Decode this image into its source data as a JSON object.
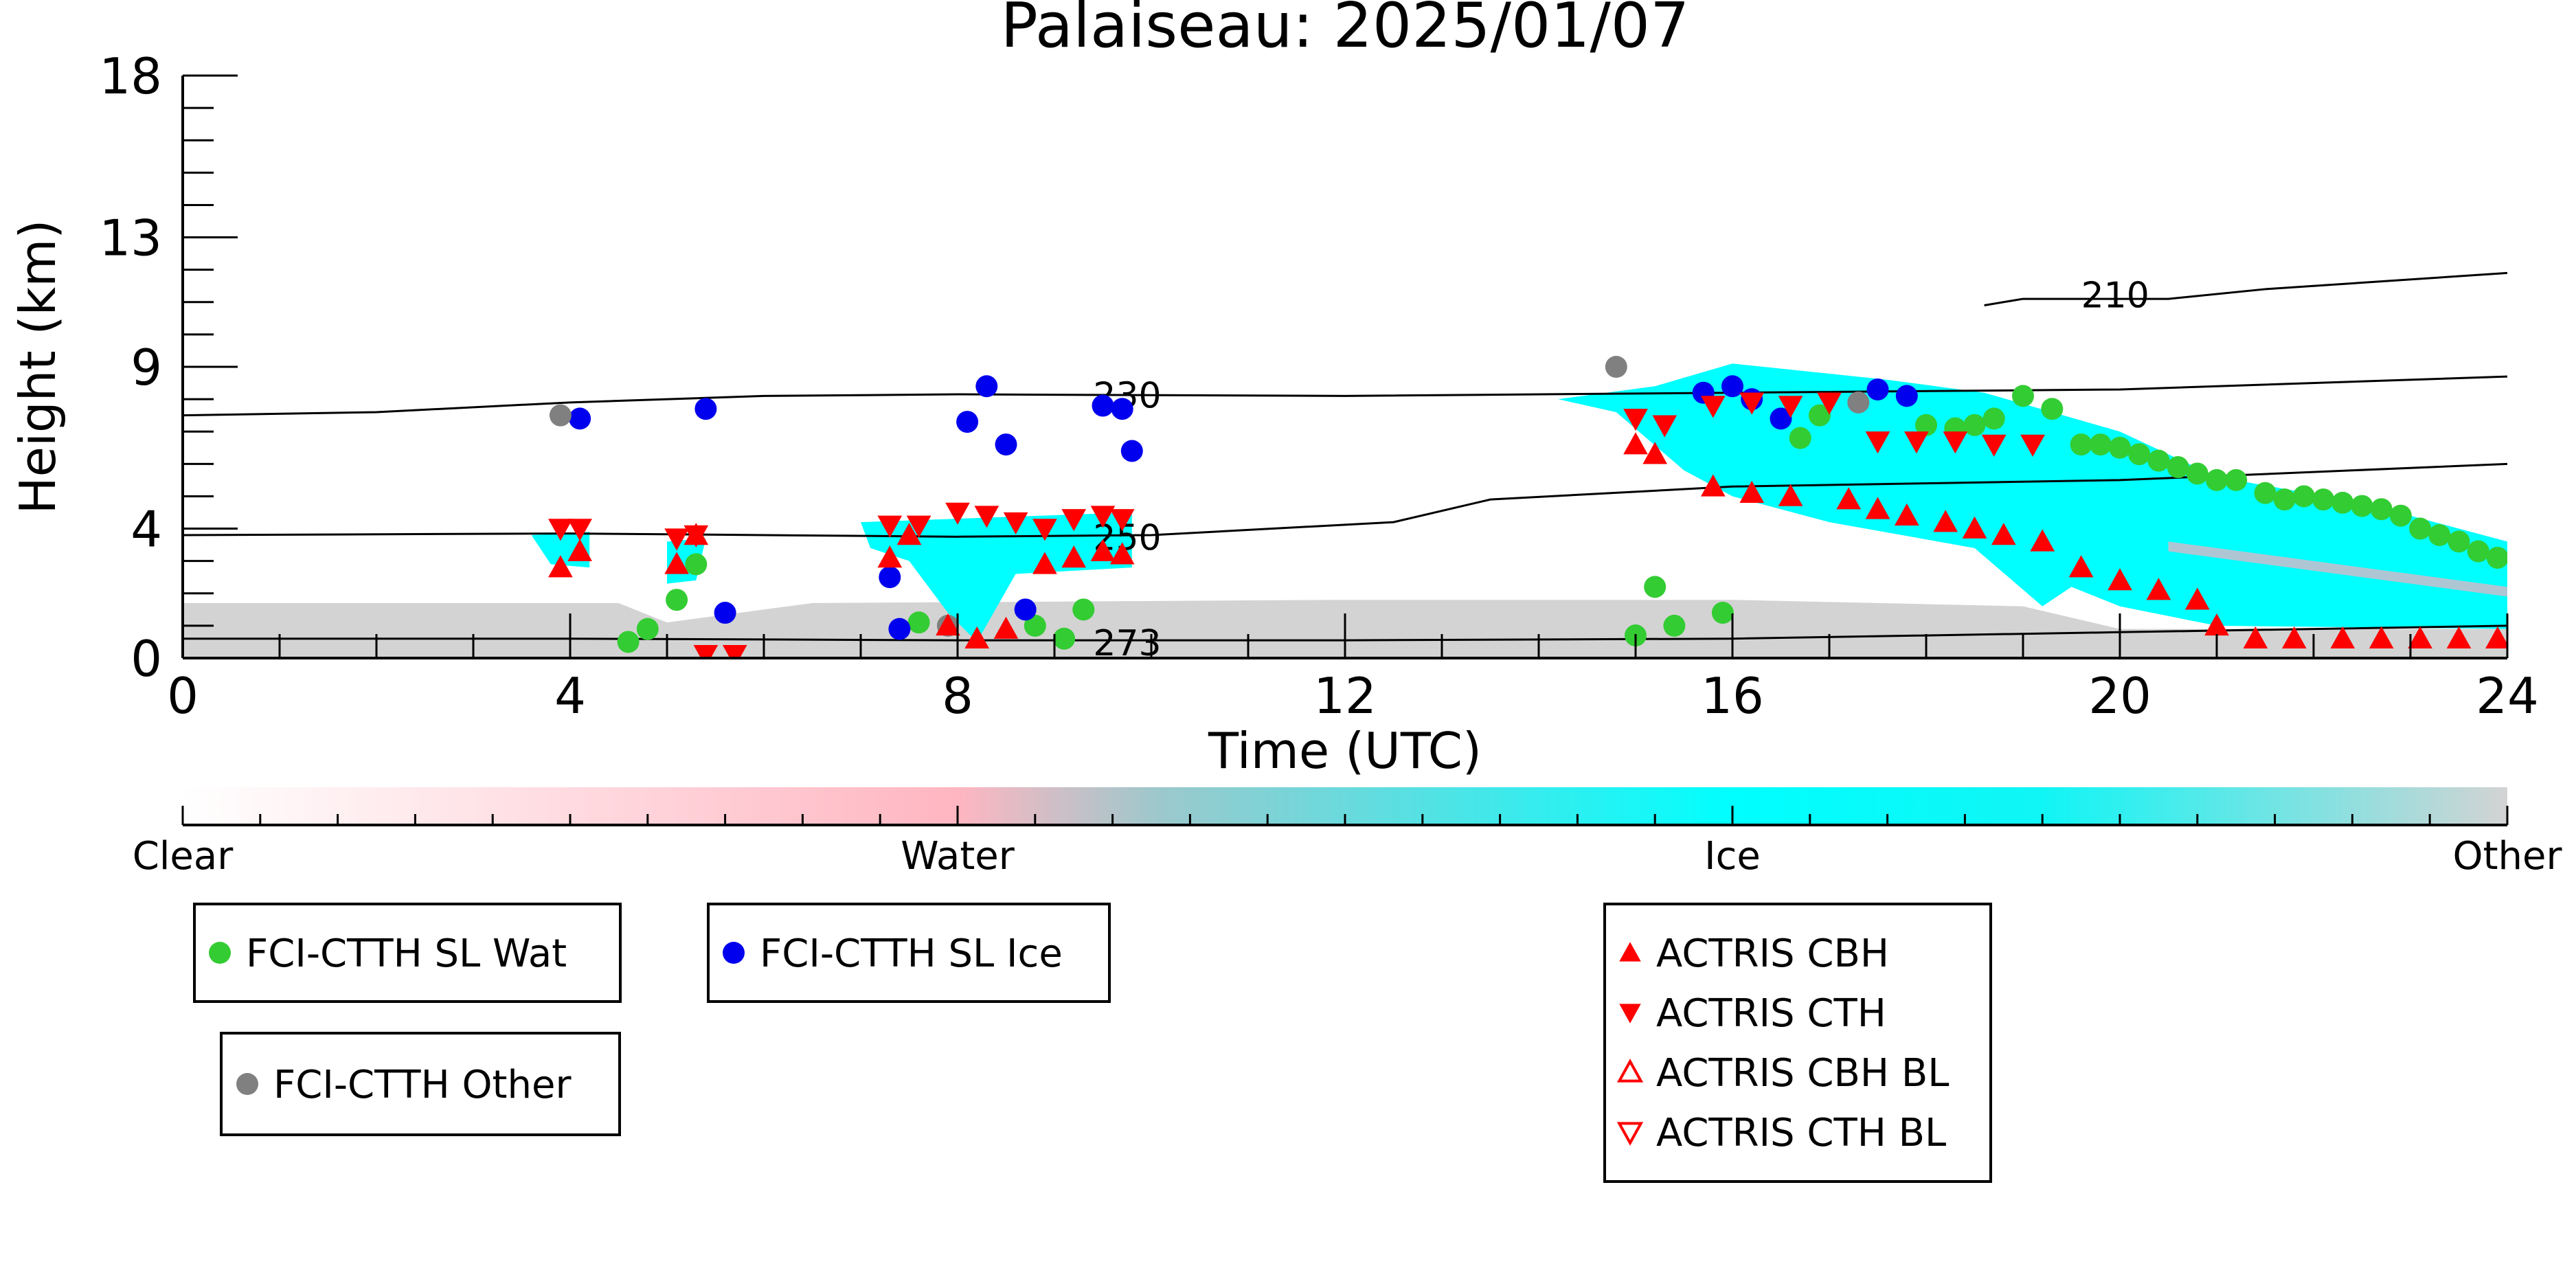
{
  "chart_data": {
    "type": "scatter",
    "title": "Palaiseau: 2025/01/07",
    "xlabel": "Time (UTC)",
    "ylabel": "Height (km)",
    "xlim": [
      0,
      24
    ],
    "ylim": [
      0,
      18
    ],
    "x_ticks": [
      0,
      4,
      8,
      12,
      16,
      20,
      24
    ],
    "y_ticks": [
      0,
      4,
      9,
      13,
      18
    ],
    "y_tick_labels": [
      "0",
      "4",
      "9",
      "13",
      "18"
    ],
    "colorbar": {
      "labels": [
        "Clear",
        "Water",
        "Ice",
        "Other"
      ],
      "colors": [
        "#ffffff",
        "#ffb6c1",
        "#00ffff",
        "#d3d3d3"
      ]
    },
    "contours": [
      {
        "label": "210",
        "label_at": [
          19.6,
          11.2
        ],
        "points": [
          [
            18.6,
            10.9
          ],
          [
            19.0,
            11.1
          ],
          [
            20.5,
            11.1
          ],
          [
            21.5,
            11.4
          ],
          [
            24,
            11.9
          ]
        ]
      },
      {
        "label": "230",
        "label_at": [
          9.4,
          8.1
        ],
        "points": [
          [
            0,
            7.5
          ],
          [
            2,
            7.6
          ],
          [
            4,
            7.9
          ],
          [
            6,
            8.1
          ],
          [
            8,
            8.15
          ],
          [
            12,
            8.1
          ],
          [
            16,
            8.2
          ],
          [
            20,
            8.3
          ],
          [
            24,
            8.7
          ]
        ]
      },
      {
        "label": "250",
        "label_at": [
          9.4,
          3.7
        ],
        "points": [
          [
            0,
            3.8
          ],
          [
            4,
            3.85
          ],
          [
            8,
            3.75
          ],
          [
            10,
            3.8
          ],
          [
            12.5,
            4.2
          ],
          [
            13.5,
            4.9
          ],
          [
            16,
            5.3
          ],
          [
            18,
            5.4
          ],
          [
            20,
            5.5
          ],
          [
            24,
            6.0
          ]
        ]
      },
      {
        "label": "273",
        "label_at": [
          9.4,
          0.45
        ],
        "points": [
          [
            0,
            0.6
          ],
          [
            4,
            0.6
          ],
          [
            8,
            0.55
          ],
          [
            12,
            0.55
          ],
          [
            16,
            0.6
          ],
          [
            20,
            0.8
          ],
          [
            24,
            1.0
          ]
        ]
      }
    ],
    "series": [
      {
        "name": "FCI-CTTH SL Wat",
        "marker": "circle",
        "color": "#33cc33",
        "points": [
          [
            4.6,
            0.5
          ],
          [
            4.8,
            0.9
          ],
          [
            5.1,
            1.8
          ],
          [
            5.3,
            2.9
          ],
          [
            7.6,
            1.1
          ],
          [
            8.8,
            1.0
          ],
          [
            9.1,
            0.6
          ],
          [
            9.3,
            1.5
          ],
          [
            15.0,
            0.7
          ],
          [
            15.2,
            2.2
          ],
          [
            15.4,
            1.0
          ],
          [
            15.9,
            1.4
          ],
          [
            16.7,
            6.8
          ],
          [
            16.9,
            7.5
          ],
          [
            18.0,
            7.2
          ],
          [
            18.3,
            7.1
          ],
          [
            18.5,
            7.2
          ],
          [
            18.7,
            7.4
          ],
          [
            19.0,
            8.1
          ],
          [
            19.3,
            7.7
          ],
          [
            19.6,
            6.6
          ],
          [
            19.8,
            6.6
          ],
          [
            20.0,
            6.5
          ],
          [
            20.2,
            6.3
          ],
          [
            20.4,
            6.1
          ],
          [
            20.6,
            5.9
          ],
          [
            20.8,
            5.7
          ],
          [
            21.0,
            5.5
          ],
          [
            21.2,
            5.5
          ],
          [
            21.5,
            5.1
          ],
          [
            21.7,
            4.9
          ],
          [
            21.9,
            5.0
          ],
          [
            22.1,
            4.9
          ],
          [
            22.3,
            4.8
          ],
          [
            22.5,
            4.7
          ],
          [
            22.7,
            4.6
          ],
          [
            22.9,
            4.4
          ],
          [
            23.1,
            4.0
          ],
          [
            23.3,
            3.8
          ],
          [
            23.5,
            3.6
          ],
          [
            23.7,
            3.3
          ],
          [
            23.9,
            3.1
          ]
        ]
      },
      {
        "name": "FCI-CTTH SL Ice",
        "marker": "circle",
        "color": "#0000ee",
        "points": [
          [
            4.1,
            7.4
          ],
          [
            5.4,
            7.7
          ],
          [
            5.6,
            1.4
          ],
          [
            7.3,
            2.5
          ],
          [
            7.4,
            0.9
          ],
          [
            8.1,
            7.3
          ],
          [
            8.3,
            8.4
          ],
          [
            8.5,
            6.6
          ],
          [
            8.7,
            1.5
          ],
          [
            9.5,
            7.8
          ],
          [
            9.7,
            7.7
          ],
          [
            9.8,
            6.4
          ],
          [
            15.7,
            8.2
          ],
          [
            16.0,
            8.4
          ],
          [
            16.2,
            8.0
          ],
          [
            16.5,
            7.4
          ],
          [
            17.5,
            8.3
          ],
          [
            17.8,
            8.1
          ]
        ]
      },
      {
        "name": "FCI-CTTH Other",
        "marker": "circle",
        "color": "#808080",
        "points": [
          [
            3.9,
            7.5
          ],
          [
            7.9,
            1.0
          ],
          [
            14.8,
            9.0
          ],
          [
            17.3,
            7.9
          ]
        ]
      },
      {
        "name": "ACTRIS CBH",
        "marker": "triangle-up",
        "color": "#ff0000",
        "filled": true,
        "points": [
          [
            3.9,
            2.8
          ],
          [
            4.1,
            3.3
          ],
          [
            5.1,
            2.9
          ],
          [
            5.3,
            3.8
          ],
          [
            7.3,
            3.1
          ],
          [
            7.5,
            3.8
          ],
          [
            7.9,
            1.0
          ],
          [
            8.2,
            0.6
          ],
          [
            8.5,
            0.9
          ],
          [
            8.9,
            2.9
          ],
          [
            9.2,
            3.1
          ],
          [
            9.5,
            3.3
          ],
          [
            9.7,
            3.2
          ],
          [
            15.0,
            6.6
          ],
          [
            15.2,
            6.3
          ],
          [
            15.8,
            5.3
          ],
          [
            16.2,
            5.1
          ],
          [
            16.6,
            5.0
          ],
          [
            17.2,
            4.9
          ],
          [
            17.5,
            4.6
          ],
          [
            17.8,
            4.4
          ],
          [
            18.2,
            4.2
          ],
          [
            18.5,
            4.0
          ],
          [
            18.8,
            3.8
          ],
          [
            19.2,
            3.6
          ],
          [
            19.6,
            2.8
          ],
          [
            20.0,
            2.4
          ],
          [
            20.4,
            2.1
          ],
          [
            20.8,
            1.8
          ],
          [
            21.0,
            1.0
          ],
          [
            21.4,
            0.6
          ],
          [
            21.8,
            0.6
          ],
          [
            22.3,
            0.6
          ],
          [
            22.7,
            0.6
          ],
          [
            23.1,
            0.6
          ],
          [
            23.5,
            0.6
          ],
          [
            23.9,
            0.6
          ]
        ]
      },
      {
        "name": "ACTRIS CTH",
        "marker": "triangle-down",
        "color": "#ff0000",
        "filled": true,
        "points": [
          [
            3.9,
            4.0
          ],
          [
            4.1,
            4.0
          ],
          [
            5.1,
            3.7
          ],
          [
            5.3,
            3.8
          ],
          [
            7.3,
            4.1
          ],
          [
            7.6,
            4.1
          ],
          [
            8.0,
            4.5
          ],
          [
            8.3,
            4.4
          ],
          [
            8.6,
            4.2
          ],
          [
            8.9,
            4.0
          ],
          [
            9.2,
            4.3
          ],
          [
            9.5,
            4.4
          ],
          [
            9.7,
            4.3
          ],
          [
            15.0,
            7.4
          ],
          [
            15.3,
            7.2
          ],
          [
            15.8,
            7.8
          ],
          [
            16.2,
            7.9
          ],
          [
            16.6,
            7.8
          ],
          [
            17.0,
            7.9
          ],
          [
            17.5,
            6.7
          ],
          [
            17.9,
            6.7
          ],
          [
            18.3,
            6.7
          ],
          [
            18.7,
            6.6
          ],
          [
            19.1,
            6.6
          ],
          [
            5.4,
            0.1
          ],
          [
            5.7,
            0.1
          ]
        ]
      },
      {
        "name": "ACTRIS CBH BL",
        "marker": "triangle-up",
        "color": "#ff0000",
        "filled": false,
        "points": []
      },
      {
        "name": "ACTRIS CTH BL",
        "marker": "triangle-down",
        "color": "#ff0000",
        "filled": false,
        "points": []
      }
    ]
  }
}
